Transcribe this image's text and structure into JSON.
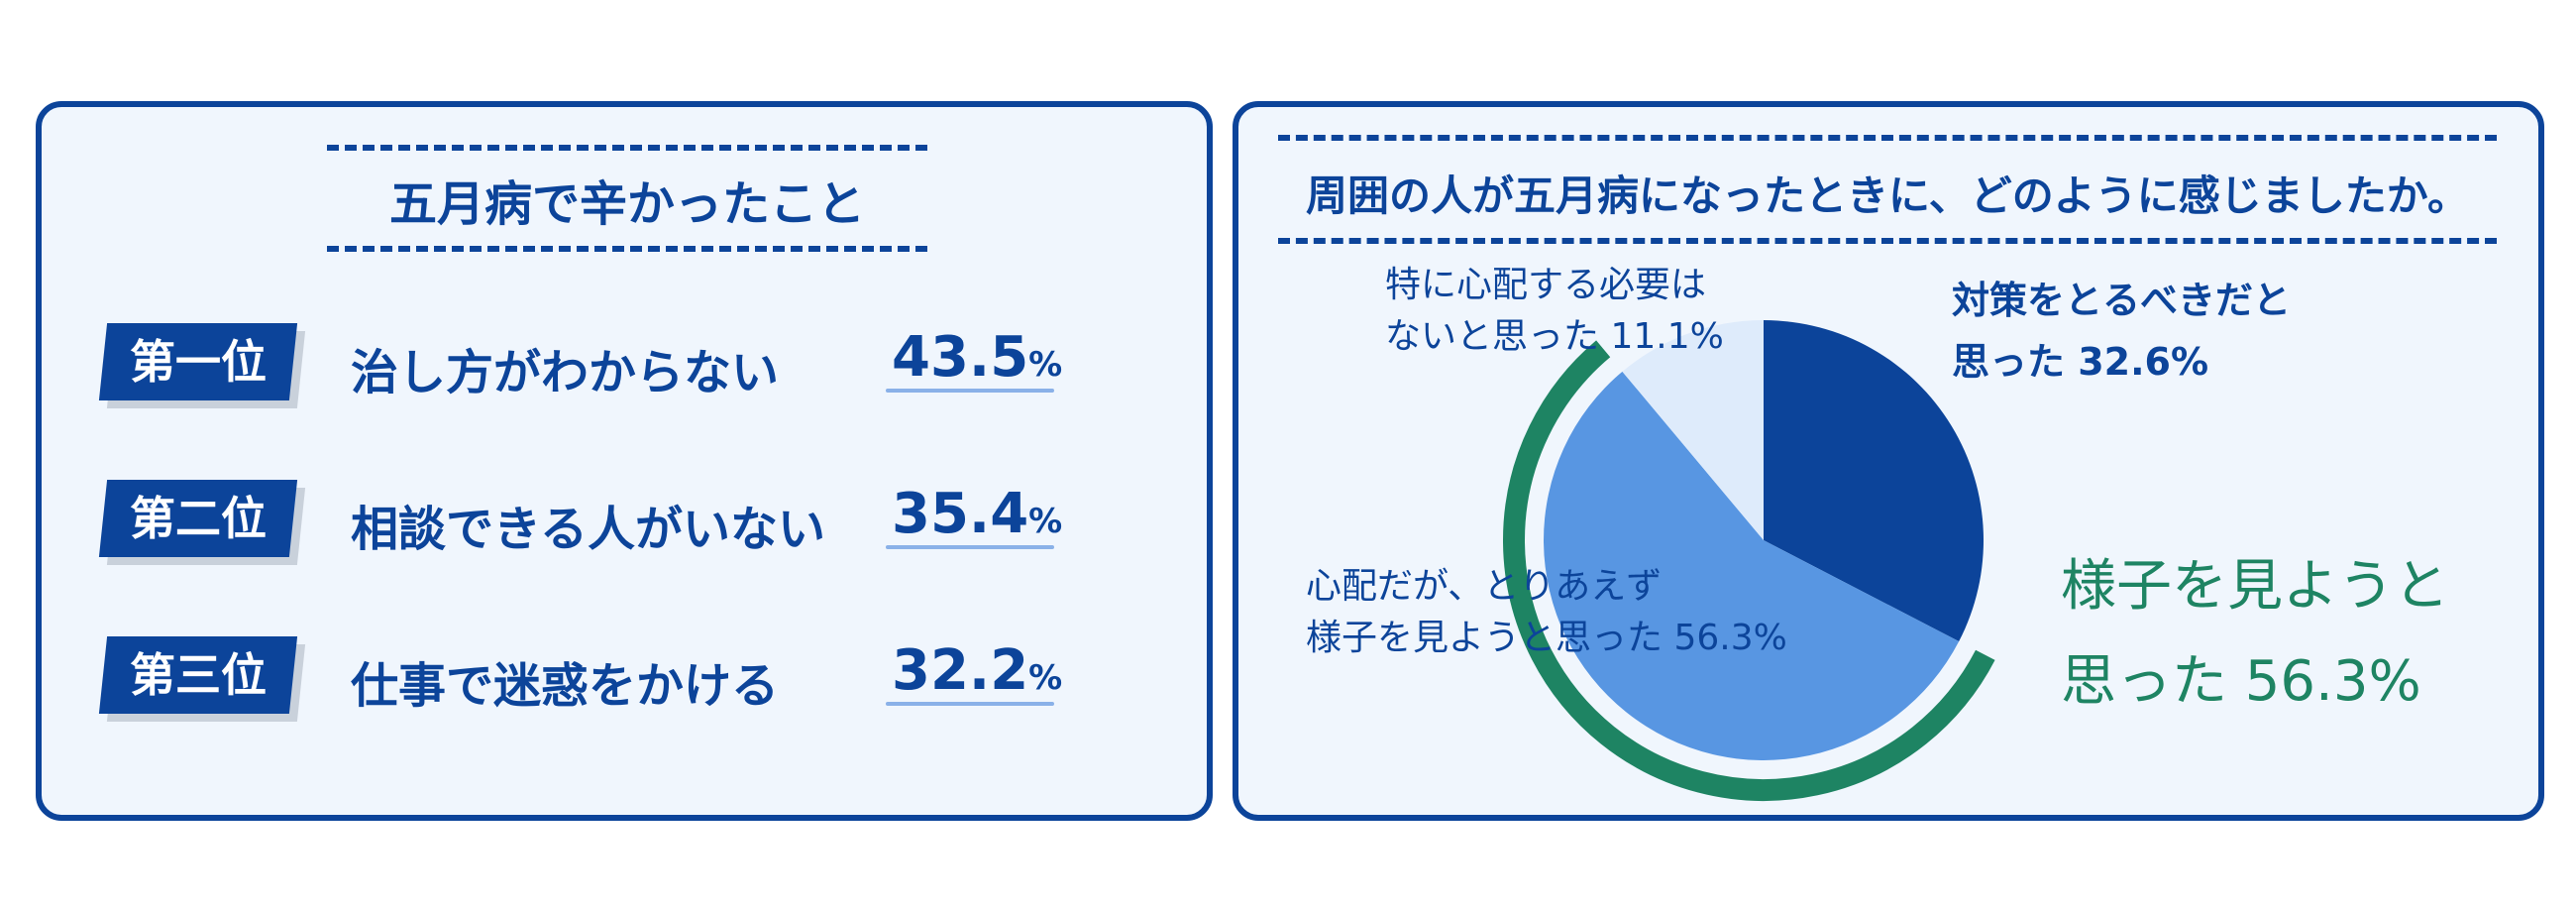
{
  "left": {
    "title": "五月病で辛かったこと",
    "rankings": [
      {
        "rank": "第一位",
        "label": "治し方がわからない",
        "percent": "43.5",
        "unit": "%"
      },
      {
        "rank": "第二位",
        "label": "相談できる人がいない",
        "percent": "35.4",
        "unit": "%"
      },
      {
        "rank": "第三位",
        "label": "仕事で迷惑をかける",
        "percent": "32.2",
        "unit": "%"
      }
    ]
  },
  "right": {
    "title": "周囲の人が五月病になったときに、どのように感じましたか。",
    "labels": {
      "countermeasure": [
        "対策をとるべきだと",
        "思った 32.6%"
      ],
      "no_worry": [
        "特に心配する必要は",
        "ないと思った 11.1%"
      ],
      "wait_see": [
        "心配だが、とりあえず",
        "様子を見ようと思った 56.3%"
      ],
      "highlight": [
        "様子を見ようと",
        "思った 56.3%"
      ]
    }
  },
  "chart_data": {
    "type": "pie",
    "slices": [
      {
        "label": "対策をとるべきだと思った",
        "value": 32.6,
        "color": "#0c449a"
      },
      {
        "label": "心配だが、とりあえず様子を見ようと思った",
        "value": 56.3,
        "color": "#5896e2"
      },
      {
        "label": "特に心配する必要はないと思った",
        "value": 11.1,
        "color": "#deebfb"
      }
    ],
    "highlight_slice": 1,
    "highlight_color": "#1e8463"
  }
}
